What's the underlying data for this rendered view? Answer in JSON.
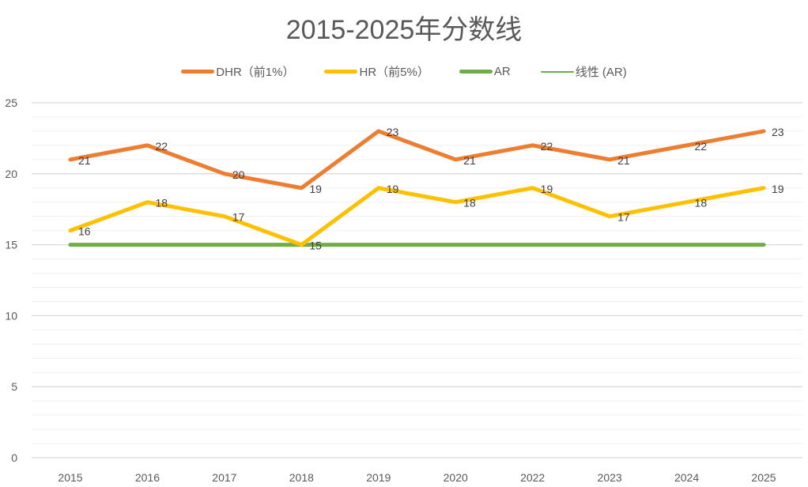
{
  "chart_data": {
    "type": "line",
    "title": "2015-2025年分数线",
    "categories": [
      "2015",
      "2016",
      "2017",
      "2018",
      "2019",
      "2020",
      "2022",
      "2023",
      "2024",
      "2025"
    ],
    "series": [
      {
        "name": "DHR（前1%）",
        "color": "#ED7D31",
        "values": [
          21,
          22,
          20,
          19,
          23,
          21,
          22,
          21,
          22,
          23
        ],
        "labels": true
      },
      {
        "name": "HR（前5%）",
        "color": "#FFC000",
        "values": [
          16,
          18,
          17,
          15,
          19,
          18,
          19,
          17,
          18,
          19
        ],
        "labels": true
      },
      {
        "name": "AR",
        "color": "#70AD47",
        "values": [
          15,
          15,
          15,
          15,
          15,
          15,
          15,
          15,
          15,
          15
        ],
        "labels": false
      },
      {
        "name": "线性 (AR)",
        "color": "#70AD47",
        "values": [
          15,
          15,
          15,
          15,
          15,
          15,
          15,
          15,
          15,
          15
        ],
        "labels": false,
        "trendline": true
      }
    ],
    "ylim": [
      0,
      25
    ],
    "yticks": [
      0,
      5,
      10,
      15,
      20,
      25
    ],
    "minor_step": 1,
    "grid": true,
    "legend": "top",
    "xlabel": "",
    "ylabel": ""
  }
}
